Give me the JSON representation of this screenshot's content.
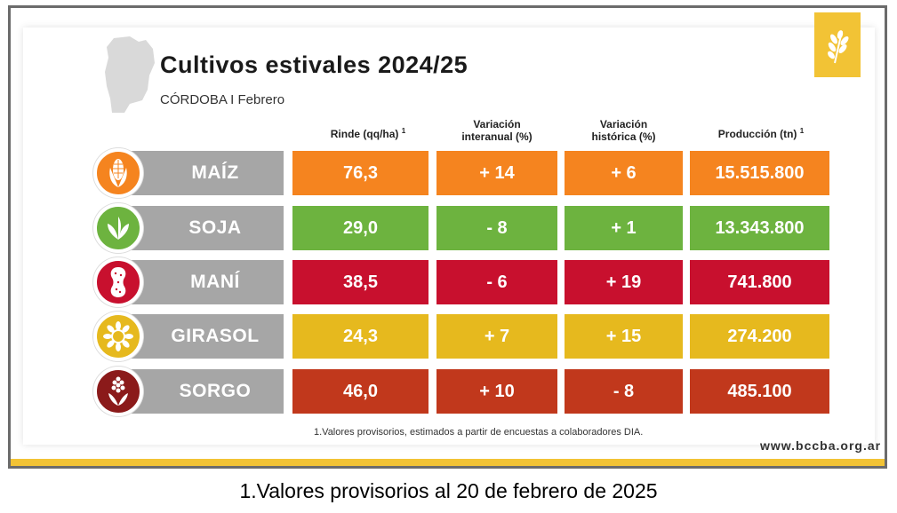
{
  "header": {
    "title": "Cultivos estivales 2024/25",
    "subtitle": "CÓRDOBA I Febrero"
  },
  "columns": {
    "rinde": "Rinde (qq/ha)",
    "rinde_note": "1",
    "var_inter_line1": "Variación",
    "var_inter_line2": "interanual (%)",
    "var_hist_line1": "Variación",
    "var_hist_line2": "histórica (%)",
    "produccion": "Producción (tn)",
    "produccion_note": "1"
  },
  "rows": [
    {
      "crop": "MAÍZ",
      "icon": "corn-icon",
      "rinde": "76,3",
      "var_inter": "+ 14",
      "var_hist": "+ 6",
      "produccion": "15.515.800",
      "color": "#f5841f"
    },
    {
      "crop": "SOJA",
      "icon": "soybean-icon",
      "rinde": "29,0",
      "var_inter": "- 8",
      "var_hist": "+ 1",
      "produccion": "13.343.800",
      "color": "#6db33f"
    },
    {
      "crop": "MANÍ",
      "icon": "peanut-icon",
      "rinde": "38,5",
      "var_inter": "- 6",
      "var_hist": "+ 19",
      "produccion": "741.800",
      "color": "#c8102e"
    },
    {
      "crop": "GIRASOL",
      "icon": "sunflower-icon",
      "rinde": "24,3",
      "var_inter": "+ 7",
      "var_hist": "+ 15",
      "produccion": "274.200",
      "color": "#e6b91e"
    },
    {
      "crop": "SORGO",
      "icon": "sorghum-icon",
      "rinde": "46,0",
      "var_inter": "+ 10",
      "var_hist": "- 8",
      "produccion": "485.100",
      "color": "#c1381c"
    }
  ],
  "icon_colors": [
    "#f5841f",
    "#6db33f",
    "#c8102e",
    "#e6b91e",
    "#8b1a1a"
  ],
  "footnote": "1.Valores provisorios, estimados a partir de encuestas a colaboradores DIA.",
  "website": "www.bccba.org.ar",
  "caption": "1.Valores provisorios al 20 de febrero de 2025",
  "colors": {
    "accent_yellow": "#f2c335",
    "label_gray": "#a6a6a6",
    "frame_gray": "#6b6b6b"
  }
}
